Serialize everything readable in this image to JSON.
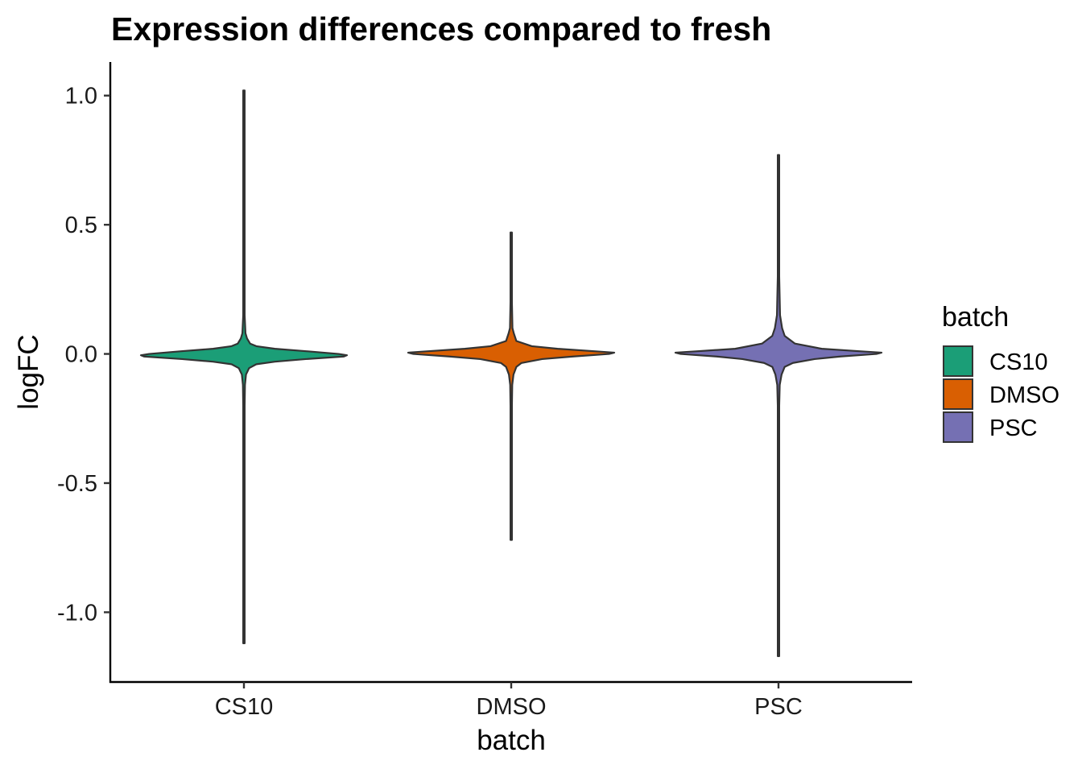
{
  "chart_data": {
    "type": "violin",
    "title": "Expression differences compared to fresh",
    "xlabel": "batch",
    "ylabel": "logFC",
    "categories": [
      "CS10",
      "DMSO",
      "PSC"
    ],
    "ylim": [
      -1.27,
      1.13
    ],
    "yticks": [
      1.0,
      0.5,
      0.0,
      -0.5,
      -1.0
    ],
    "ytick_labels": [
      "1.0",
      "0.5",
      "0.0",
      "-0.5",
      "-1.0"
    ],
    "grid": false,
    "legend": {
      "title": "batch",
      "placement": "right",
      "entries": [
        "CS10",
        "DMSO",
        "PSC"
      ]
    },
    "series": [
      {
        "name": "CS10",
        "color": "#1b9e77",
        "min": -1.12,
        "max": 1.02,
        "center": -0.005,
        "profile": [
          [
            1.02,
            0.0
          ],
          [
            0.5,
            0.0
          ],
          [
            0.3,
            0.003
          ],
          [
            0.15,
            0.006
          ],
          [
            0.08,
            0.015
          ],
          [
            0.06,
            0.03
          ],
          [
            0.04,
            0.06
          ],
          [
            0.03,
            0.12
          ],
          [
            0.02,
            0.3
          ],
          [
            0.01,
            0.62
          ],
          [
            0.0,
            0.92
          ],
          [
            -0.005,
            1.0
          ],
          [
            -0.01,
            0.97
          ],
          [
            -0.02,
            0.6
          ],
          [
            -0.03,
            0.3
          ],
          [
            -0.04,
            0.12
          ],
          [
            -0.055,
            0.05
          ],
          [
            -0.08,
            0.02
          ],
          [
            -0.12,
            0.01
          ],
          [
            -0.2,
            0.005
          ],
          [
            -0.5,
            0.002
          ],
          [
            -1.12,
            0.0
          ]
        ]
      },
      {
        "name": "DMSO",
        "color": "#d95f02",
        "min": -0.72,
        "max": 0.47,
        "center": 0.005,
        "profile": [
          [
            0.47,
            0.0
          ],
          [
            0.2,
            0.003
          ],
          [
            0.1,
            0.012
          ],
          [
            0.08,
            0.025
          ],
          [
            0.05,
            0.05
          ],
          [
            0.03,
            0.2
          ],
          [
            0.02,
            0.45
          ],
          [
            0.01,
            0.82
          ],
          [
            0.005,
            1.0
          ],
          [
            0.0,
            0.95
          ],
          [
            -0.01,
            0.6
          ],
          [
            -0.02,
            0.3
          ],
          [
            -0.035,
            0.1
          ],
          [
            -0.05,
            0.05
          ],
          [
            -0.08,
            0.022
          ],
          [
            -0.12,
            0.01
          ],
          [
            -0.2,
            0.004
          ],
          [
            -0.72,
            0.0
          ]
        ]
      },
      {
        "name": "PSC",
        "color": "#7570b3",
        "min": -1.17,
        "max": 0.77,
        "center": 0.005,
        "profile": [
          [
            0.77,
            0.0
          ],
          [
            0.3,
            0.004
          ],
          [
            0.15,
            0.015
          ],
          [
            0.1,
            0.035
          ],
          [
            0.07,
            0.06
          ],
          [
            0.04,
            0.16
          ],
          [
            0.02,
            0.42
          ],
          [
            0.01,
            0.8
          ],
          [
            0.005,
            1.0
          ],
          [
            0.0,
            0.95
          ],
          [
            -0.01,
            0.6
          ],
          [
            -0.02,
            0.35
          ],
          [
            -0.035,
            0.14
          ],
          [
            -0.05,
            0.06
          ],
          [
            -0.08,
            0.03
          ],
          [
            -0.12,
            0.012
          ],
          [
            -0.2,
            0.005
          ],
          [
            -0.5,
            0.002
          ],
          [
            -1.17,
            0.0
          ]
        ]
      }
    ]
  }
}
